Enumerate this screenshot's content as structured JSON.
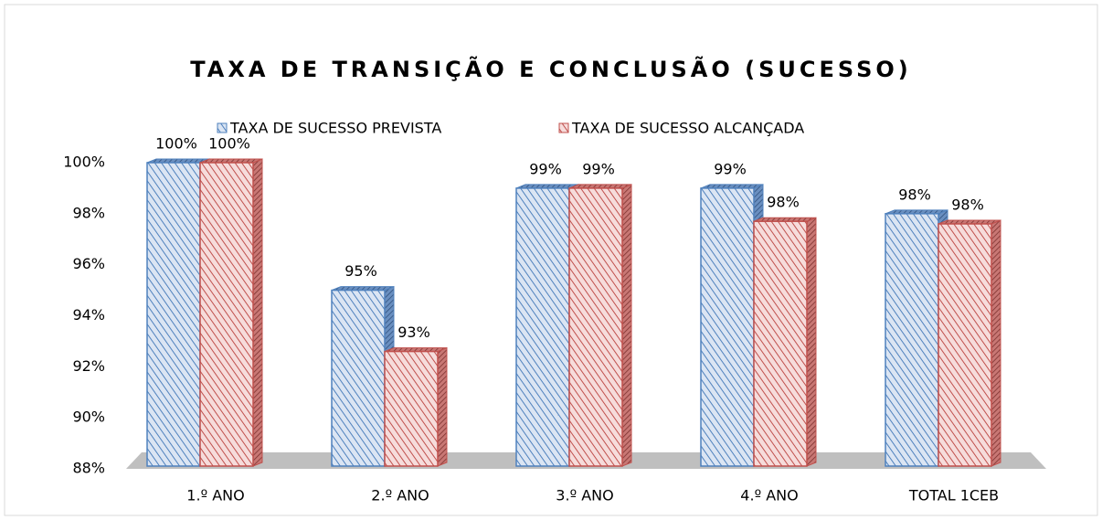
{
  "chart_data": {
    "type": "bar3d",
    "title": "TAXA DE TRANSIÇÃO E CONCLUSÃO (SUCESSO)",
    "categories": [
      "1.º ANO",
      "2.º ANO",
      "3.º ANO",
      "4.º ANO",
      "TOTAL 1CEB"
    ],
    "series": [
      {
        "name": "TAXA DE SUCESSO PREVISTA",
        "color": "#4f81bd",
        "values": [
          100,
          95,
          99,
          99,
          98
        ],
        "value_labels": [
          "100%",
          "95%",
          "99%",
          "99%",
          "98%"
        ]
      },
      {
        "name": "TAXA DE SUCESSO ALCANÇADA",
        "color": "#c0504d",
        "values": [
          100,
          92.6,
          99,
          97.7,
          97.6
        ],
        "value_labels": [
          "100%",
          "93%",
          "99%",
          "98%",
          "98%"
        ]
      }
    ],
    "ylim": [
      88,
      100
    ],
    "yticks": [
      {
        "value": 88,
        "label": "88%"
      },
      {
        "value": 90,
        "label": "90%"
      },
      {
        "value": 92,
        "label": "92%"
      },
      {
        "value": 94,
        "label": "94%"
      },
      {
        "value": 96,
        "label": "96%"
      },
      {
        "value": 98,
        "label": "98%"
      },
      {
        "value": 100,
        "label": "100%"
      }
    ],
    "legend": "top"
  }
}
